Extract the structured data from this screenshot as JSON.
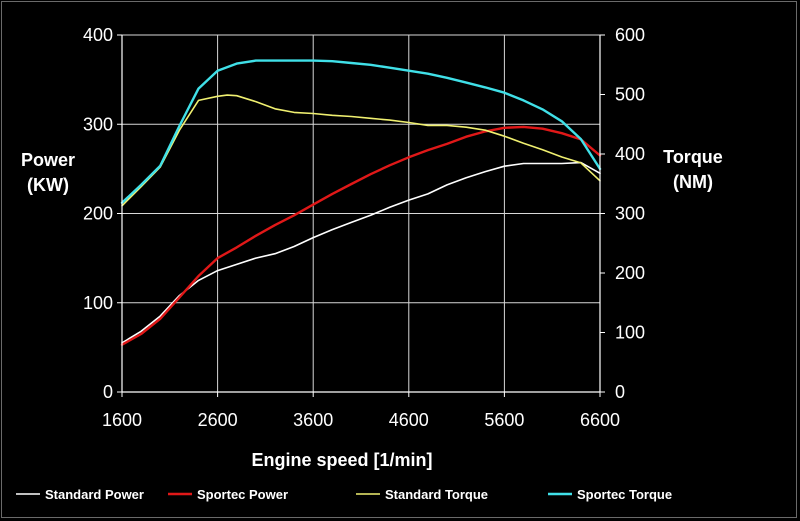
{
  "chart_data": {
    "type": "line",
    "xlabel": "Engine speed [1/min]",
    "y_left_label_lines": [
      "Power",
      "(KW)"
    ],
    "y_right_label_lines": [
      "Torque",
      "(NM)"
    ],
    "xlim": [
      1600,
      6600
    ],
    "x_ticks": [
      1600,
      2600,
      3600,
      4600,
      5600,
      6600
    ],
    "y_left_lim": [
      0,
      400
    ],
    "y_left_ticks": [
      0,
      100,
      200,
      300,
      400
    ],
    "y_right_lim": [
      0,
      600
    ],
    "y_right_ticks": [
      0,
      100,
      200,
      300,
      400,
      500,
      600
    ],
    "grid": true,
    "legend_position": "bottom",
    "series": [
      {
        "name": "Standard Power",
        "axis": "left",
        "color": "#ffffff",
        "x": [
          1600,
          1800,
          2000,
          2200,
          2400,
          2600,
          2800,
          3000,
          3200,
          3400,
          3600,
          3800,
          4000,
          4200,
          4400,
          4600,
          4800,
          5000,
          5200,
          5400,
          5600,
          5800,
          6000,
          6200,
          6400,
          6600
        ],
        "y": [
          55,
          68,
          85,
          108,
          125,
          136,
          143,
          150,
          155,
          163,
          173,
          182,
          190,
          198,
          207,
          215,
          222,
          232,
          240,
          247,
          253,
          256,
          256,
          256,
          257,
          245
        ]
      },
      {
        "name": "Sportec Power",
        "axis": "left",
        "color": "#e01818",
        "x": [
          1600,
          1800,
          2000,
          2200,
          2400,
          2600,
          2800,
          3000,
          3200,
          3400,
          3600,
          3800,
          4000,
          4200,
          4400,
          4600,
          4800,
          5000,
          5200,
          5400,
          5600,
          5800,
          6000,
          6200,
          6400,
          6600
        ],
        "y": [
          53,
          65,
          82,
          106,
          130,
          150,
          162,
          175,
          187,
          198,
          210,
          222,
          233,
          244,
          254,
          263,
          271,
          278,
          286,
          292,
          296,
          297,
          295,
          290,
          283,
          265
        ]
      },
      {
        "name": "Standard Torque",
        "axis": "right",
        "color": "#f0f070",
        "x": [
          1600,
          1800,
          2000,
          2200,
          2400,
          2600,
          2700,
          2800,
          3000,
          3200,
          3400,
          3600,
          3800,
          4000,
          4200,
          4400,
          4600,
          4800,
          5000,
          5200,
          5400,
          5600,
          5800,
          6000,
          6200,
          6400,
          6600
        ],
        "y": [
          313,
          345,
          378,
          440,
          490,
          497,
          499,
          498,
          488,
          476,
          470,
          468,
          465,
          463,
          460,
          457,
          453,
          448,
          448,
          445,
          440,
          430,
          418,
          407,
          395,
          385,
          355
        ]
      },
      {
        "name": "Sportec Torque",
        "axis": "right",
        "color": "#40e0e8",
        "x": [
          1600,
          1800,
          2000,
          2200,
          2400,
          2600,
          2800,
          3000,
          3200,
          3400,
          3600,
          3800,
          4000,
          4200,
          4400,
          4600,
          4800,
          5000,
          5200,
          5400,
          5600,
          5800,
          6000,
          6200,
          6400,
          6600
        ],
        "y": [
          318,
          348,
          380,
          447,
          510,
          540,
          552,
          557,
          557,
          557,
          557,
          556,
          553,
          550,
          545,
          540,
          535,
          528,
          520,
          512,
          503,
          490,
          475,
          455,
          425,
          375
        ]
      }
    ]
  }
}
